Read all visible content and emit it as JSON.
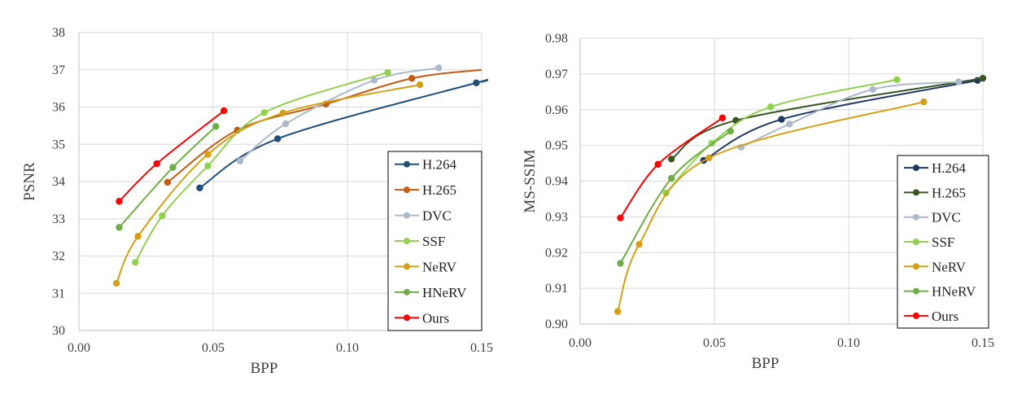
{
  "chart_data": [
    {
      "type": "line",
      "title": "",
      "xlabel": "BPP",
      "ylabel": "PSNR",
      "xlim": [
        0,
        0.15
      ],
      "ylim": [
        30,
        38
      ],
      "xticks": [
        "0.00",
        "0.05",
        "0.10",
        "0.15"
      ],
      "yticks": [
        "30",
        "31",
        "32",
        "33",
        "34",
        "35",
        "36",
        "37",
        "38"
      ],
      "grid": true,
      "legend_position": "bottom-right",
      "series": [
        {
          "name": "H.264",
          "color": "#1f4e79",
          "x": [
            0.045,
            0.074,
            0.148
          ],
          "y": [
            33.83,
            35.15,
            36.65
          ],
          "line_end_x": 0.15,
          "line_end_y": 36.67
        },
        {
          "name": "H.265",
          "color": "#c55a11",
          "x": [
            0.033,
            0.059,
            0.092,
            0.124
          ],
          "y": [
            33.98,
            35.38,
            36.08,
            36.77
          ],
          "line_end_x": 0.15,
          "line_end_y": 37.0
        },
        {
          "name": "DVC",
          "color": "#adb9ca",
          "x": [
            0.06,
            0.077,
            0.11,
            0.134
          ],
          "y": [
            34.55,
            35.55,
            36.72,
            37.05
          ]
        },
        {
          "name": "SSF",
          "color": "#92d050",
          "x": [
            0.021,
            0.031,
            0.048,
            0.069,
            0.115
          ],
          "y": [
            31.83,
            33.08,
            34.42,
            35.85,
            36.93
          ]
        },
        {
          "name": "NeRV",
          "color": "#d4a017",
          "x": [
            0.014,
            0.022,
            0.048,
            0.076,
            0.127
          ],
          "y": [
            31.27,
            32.53,
            34.73,
            35.84,
            36.6
          ]
        },
        {
          "name": "HNeRV",
          "color": "#70ad47",
          "x": [
            0.015,
            0.035,
            0.051
          ],
          "y": [
            32.77,
            34.38,
            35.48
          ]
        },
        {
          "name": "Ours",
          "color": "#ff0000",
          "x": [
            0.015,
            0.029,
            0.054
          ],
          "y": [
            33.47,
            34.48,
            35.9
          ]
        }
      ]
    },
    {
      "type": "line",
      "title": "",
      "xlabel": "BPP",
      "ylabel": "MS-SSIM",
      "xlim": [
        0,
        0.15
      ],
      "ylim": [
        0.9,
        0.98
      ],
      "xticks": [
        "0.00",
        "0.05",
        "0.10",
        "0.15"
      ],
      "yticks": [
        "0.90",
        "0.91",
        "0.92",
        "0.93",
        "0.94",
        "0.95",
        "0.96",
        "0.97",
        "0.98"
      ],
      "grid": true,
      "legend_position": "bottom-right",
      "series": [
        {
          "name": "H.264",
          "color": "#1f3864",
          "x": [
            0.046,
            0.075,
            0.148
          ],
          "y": [
            0.9458,
            0.9573,
            0.9682
          ]
        },
        {
          "name": "H.265",
          "color": "#375623",
          "x": [
            0.034,
            0.058,
            0.15
          ],
          "y": [
            0.9462,
            0.957,
            0.9688
          ]
        },
        {
          "name": "DVC",
          "color": "#adb9ca",
          "x": [
            0.06,
            0.078,
            0.109,
            0.141
          ],
          "y": [
            0.9495,
            0.956,
            0.9657,
            0.9678
          ]
        },
        {
          "name": "SSF",
          "color": "#92d050",
          "x": [
            0.032,
            0.049,
            0.071,
            0.118
          ],
          "y": [
            0.9367,
            0.9506,
            0.9608,
            0.9684
          ]
        },
        {
          "name": "NeRV",
          "color": "#d4a017",
          "x": [
            0.014,
            0.022,
            0.048,
            0.128
          ],
          "y": [
            0.9035,
            0.9223,
            0.9465,
            0.9622
          ]
        },
        {
          "name": "HNeRV",
          "color": "#70ad47",
          "x": [
            0.015,
            0.034,
            0.056
          ],
          "y": [
            0.917,
            0.9408,
            0.954
          ]
        },
        {
          "name": "Ours",
          "color": "#ff0000",
          "x": [
            0.015,
            0.029,
            0.053
          ],
          "y": [
            0.9297,
            0.9447,
            0.9577
          ]
        }
      ]
    }
  ]
}
